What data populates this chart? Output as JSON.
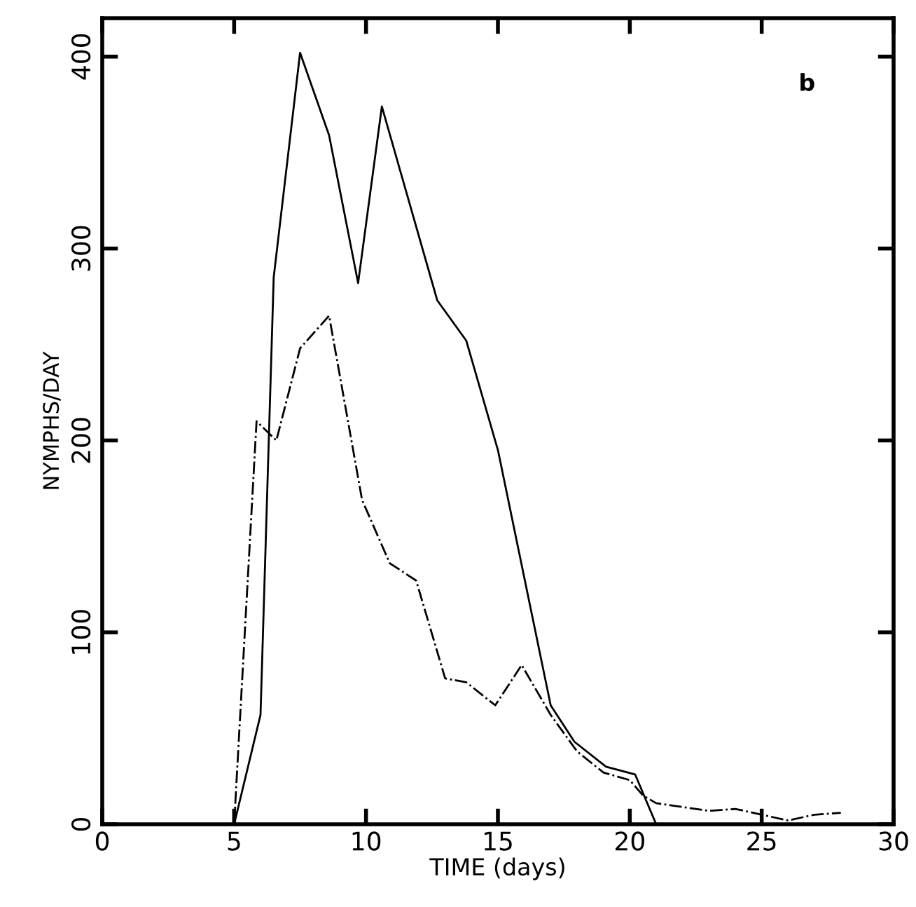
{
  "chart_data": {
    "type": "line",
    "xlabel": "TIME (days)",
    "ylabel": "NYMPHS/DAY",
    "annotations": [
      "b"
    ],
    "series": [
      {
        "color": "#000000",
        "line_style": "solid",
        "x": [
          5,
          6,
          6.5,
          7.5,
          8.6,
          9.7,
          10.6,
          12.7,
          13.8,
          15,
          17,
          17.9,
          19.1,
          20.2,
          21
        ],
        "values": [
          0,
          57,
          285,
          402,
          359,
          282,
          374,
          273,
          252,
          195,
          62,
          43,
          30,
          26,
          0
        ]
      },
      {
        "color": "#000000",
        "line_style": "dashed",
        "x": [
          5,
          5.85,
          6.6,
          7.5,
          8.6,
          9.85,
          10.9,
          11.9,
          13,
          13.8,
          14.9,
          15.9,
          17,
          18,
          19,
          20,
          20.5,
          21,
          23,
          24,
          25,
          26,
          27,
          28
        ],
        "values": [
          0,
          210,
          200,
          248,
          265,
          169,
          136,
          127,
          76,
          74,
          62,
          83,
          57,
          38,
          27,
          23,
          15,
          11,
          7,
          8,
          5,
          2,
          5,
          6
        ]
      }
    ],
    "xlim": [
      0,
      30
    ],
    "xticks": [
      0,
      5,
      10,
      15,
      20,
      25,
      30
    ],
    "ylim": [
      0,
      420
    ],
    "yticks": [
      0,
      100,
      200,
      300,
      400
    ],
    "grid": false,
    "legend": false,
    "marker": "none"
  }
}
